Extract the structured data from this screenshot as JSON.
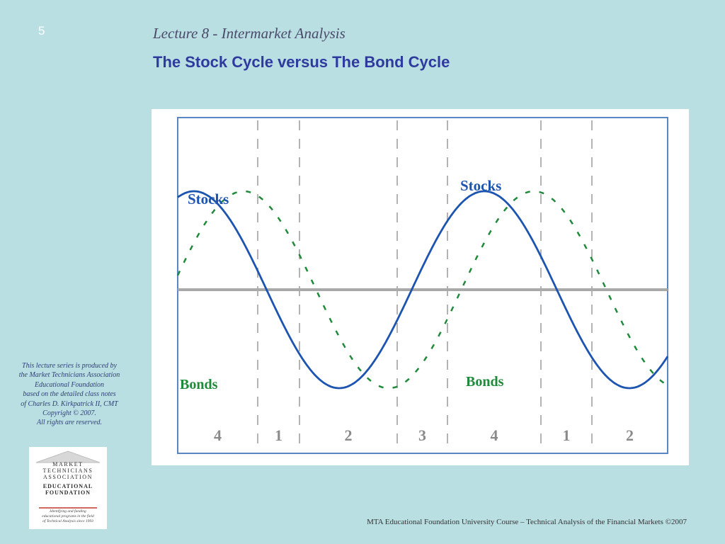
{
  "slide": {
    "number": "5",
    "subtitle": "Lecture 8 - Intermarket Analysis",
    "title": "The Stock Cycle versus The Bond Cycle"
  },
  "credits": [
    "This lecture series is produced by",
    "the Market Technicians Association",
    "Educational Foundation",
    "based on the detailed class notes",
    "of Charles D. Kirkpatrick II, CMT",
    "Copyright © 2007.",
    "All rights are reserved."
  ],
  "logo": {
    "lines": [
      "MARKET",
      "TECHNICIANS",
      "ASSOCIATION",
      "EDUCATIONAL",
      "FOUNDATION"
    ],
    "tagline": [
      "Identifying and funding",
      "educational programs in the field",
      "of Technical Analysis since 1993"
    ]
  },
  "footer": "MTA Educational Foundation University Course – Technical Analysis of the Financial Markets ©2007",
  "chart_data": {
    "type": "line",
    "series": [
      {
        "name": "Stocks",
        "color": "#1c54b0",
        "style": "solid"
      },
      {
        "name": "Bonds",
        "color": "#1f8a3a",
        "style": "dashed"
      }
    ],
    "stage_labels": [
      "4",
      "1",
      "2",
      "3",
      "4",
      "1",
      "2"
    ],
    "colors": {
      "stocks": "#1c54b0",
      "bonds": "#1f8a3a",
      "midline": "#a9a9a9",
      "frame": "#5b86c4",
      "stage_label": "#8a8a8a"
    }
  }
}
